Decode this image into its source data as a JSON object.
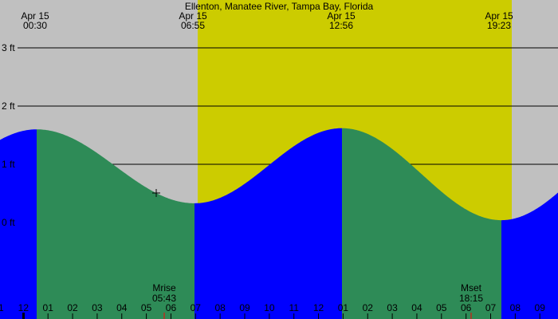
{
  "chart_data": {
    "type": "area",
    "title": "Ellenton, Manatee River, Tampa Bay, Florida",
    "xlabel": "",
    "ylabel": "",
    "ylim": [
      -1.65,
      3.8
    ],
    "y_ticks": [
      "0 ft",
      "1 ft",
      "2 ft",
      "3 ft"
    ],
    "y_tick_values": [
      0,
      1,
      2,
      3
    ],
    "grid": true,
    "extremes": [
      {
        "date": "Apr 15",
        "time": "00:30",
        "type": "high",
        "height_ft": 1.6
      },
      {
        "date": "Apr 15",
        "time": "06:55",
        "type": "low",
        "height_ft": 0.33
      },
      {
        "date": "Apr 15",
        "time": "12:56",
        "type": "high",
        "height_ft": 1.62
      },
      {
        "date": "Apr 15",
        "time": "19:23",
        "type": "low",
        "height_ft": 0.04
      }
    ],
    "x_hour_ticks": [
      "11",
      "12",
      "01",
      "02",
      "03",
      "04",
      "05",
      "06",
      "07",
      "08",
      "09",
      "10",
      "11",
      "12",
      "01",
      "02",
      "03",
      "04",
      "05",
      "06",
      "07",
      "08",
      "09"
    ],
    "daylight": {
      "start_x": 248,
      "end_x": 642
    },
    "moon_events": [
      {
        "label": "Mrise",
        "time": "05:43"
      },
      {
        "label": "Mset",
        "time": "18:15"
      }
    ],
    "series": [
      {
        "name": "rising tide",
        "color": "#0000ff"
      },
      {
        "name": "falling tide",
        "color": "#2e8b57"
      }
    ]
  },
  "colors": {
    "background": "#c0c0c0",
    "daylight": "#cccc00",
    "rising": "#0000ff",
    "falling": "#2e8b57",
    "moon_marker": "#ff0000"
  }
}
